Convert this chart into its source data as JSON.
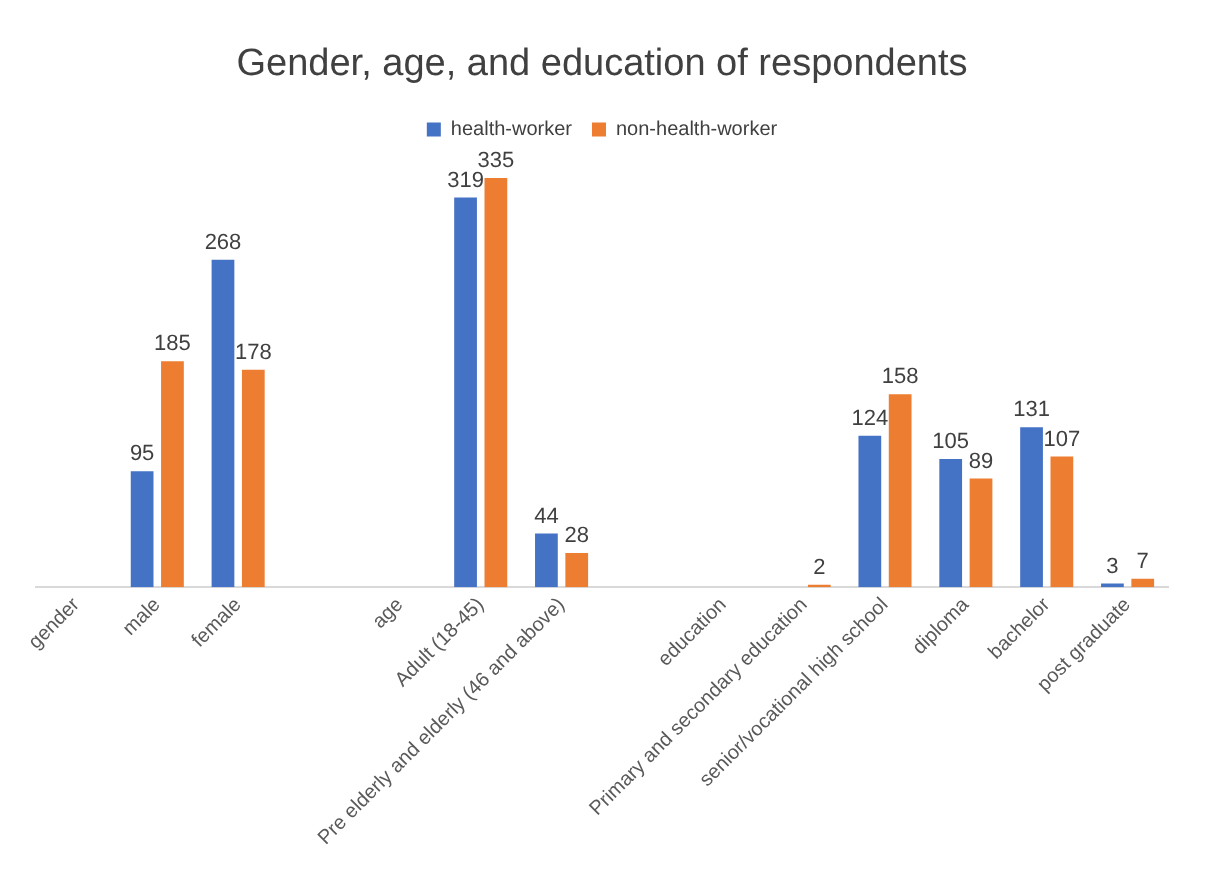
{
  "chart_data": {
    "type": "bar",
    "title": "Gender, age, and education of respondents",
    "categories": [
      "gender",
      "male",
      "female",
      null,
      "age",
      "Adult (18-45)",
      "Pre elderly and elderly (46 and above)",
      null,
      "education",
      "Primary and secondary education",
      "senior/vocational high school",
      "diploma",
      "bachelor",
      "post graduate"
    ],
    "series": [
      {
        "name": "health-worker",
        "color": "#4472c4",
        "values": [
          null,
          95,
          268,
          null,
          null,
          319,
          44,
          null,
          null,
          null,
          124,
          105,
          131,
          3
        ]
      },
      {
        "name": "non-health-worker",
        "color": "#ed7d31",
        "values": [
          null,
          185,
          178,
          null,
          null,
          335,
          28,
          null,
          null,
          2,
          158,
          89,
          107,
          7
        ]
      }
    ],
    "data_labels": true,
    "legend": "top",
    "grid": false,
    "tick_labels": "x"
  }
}
